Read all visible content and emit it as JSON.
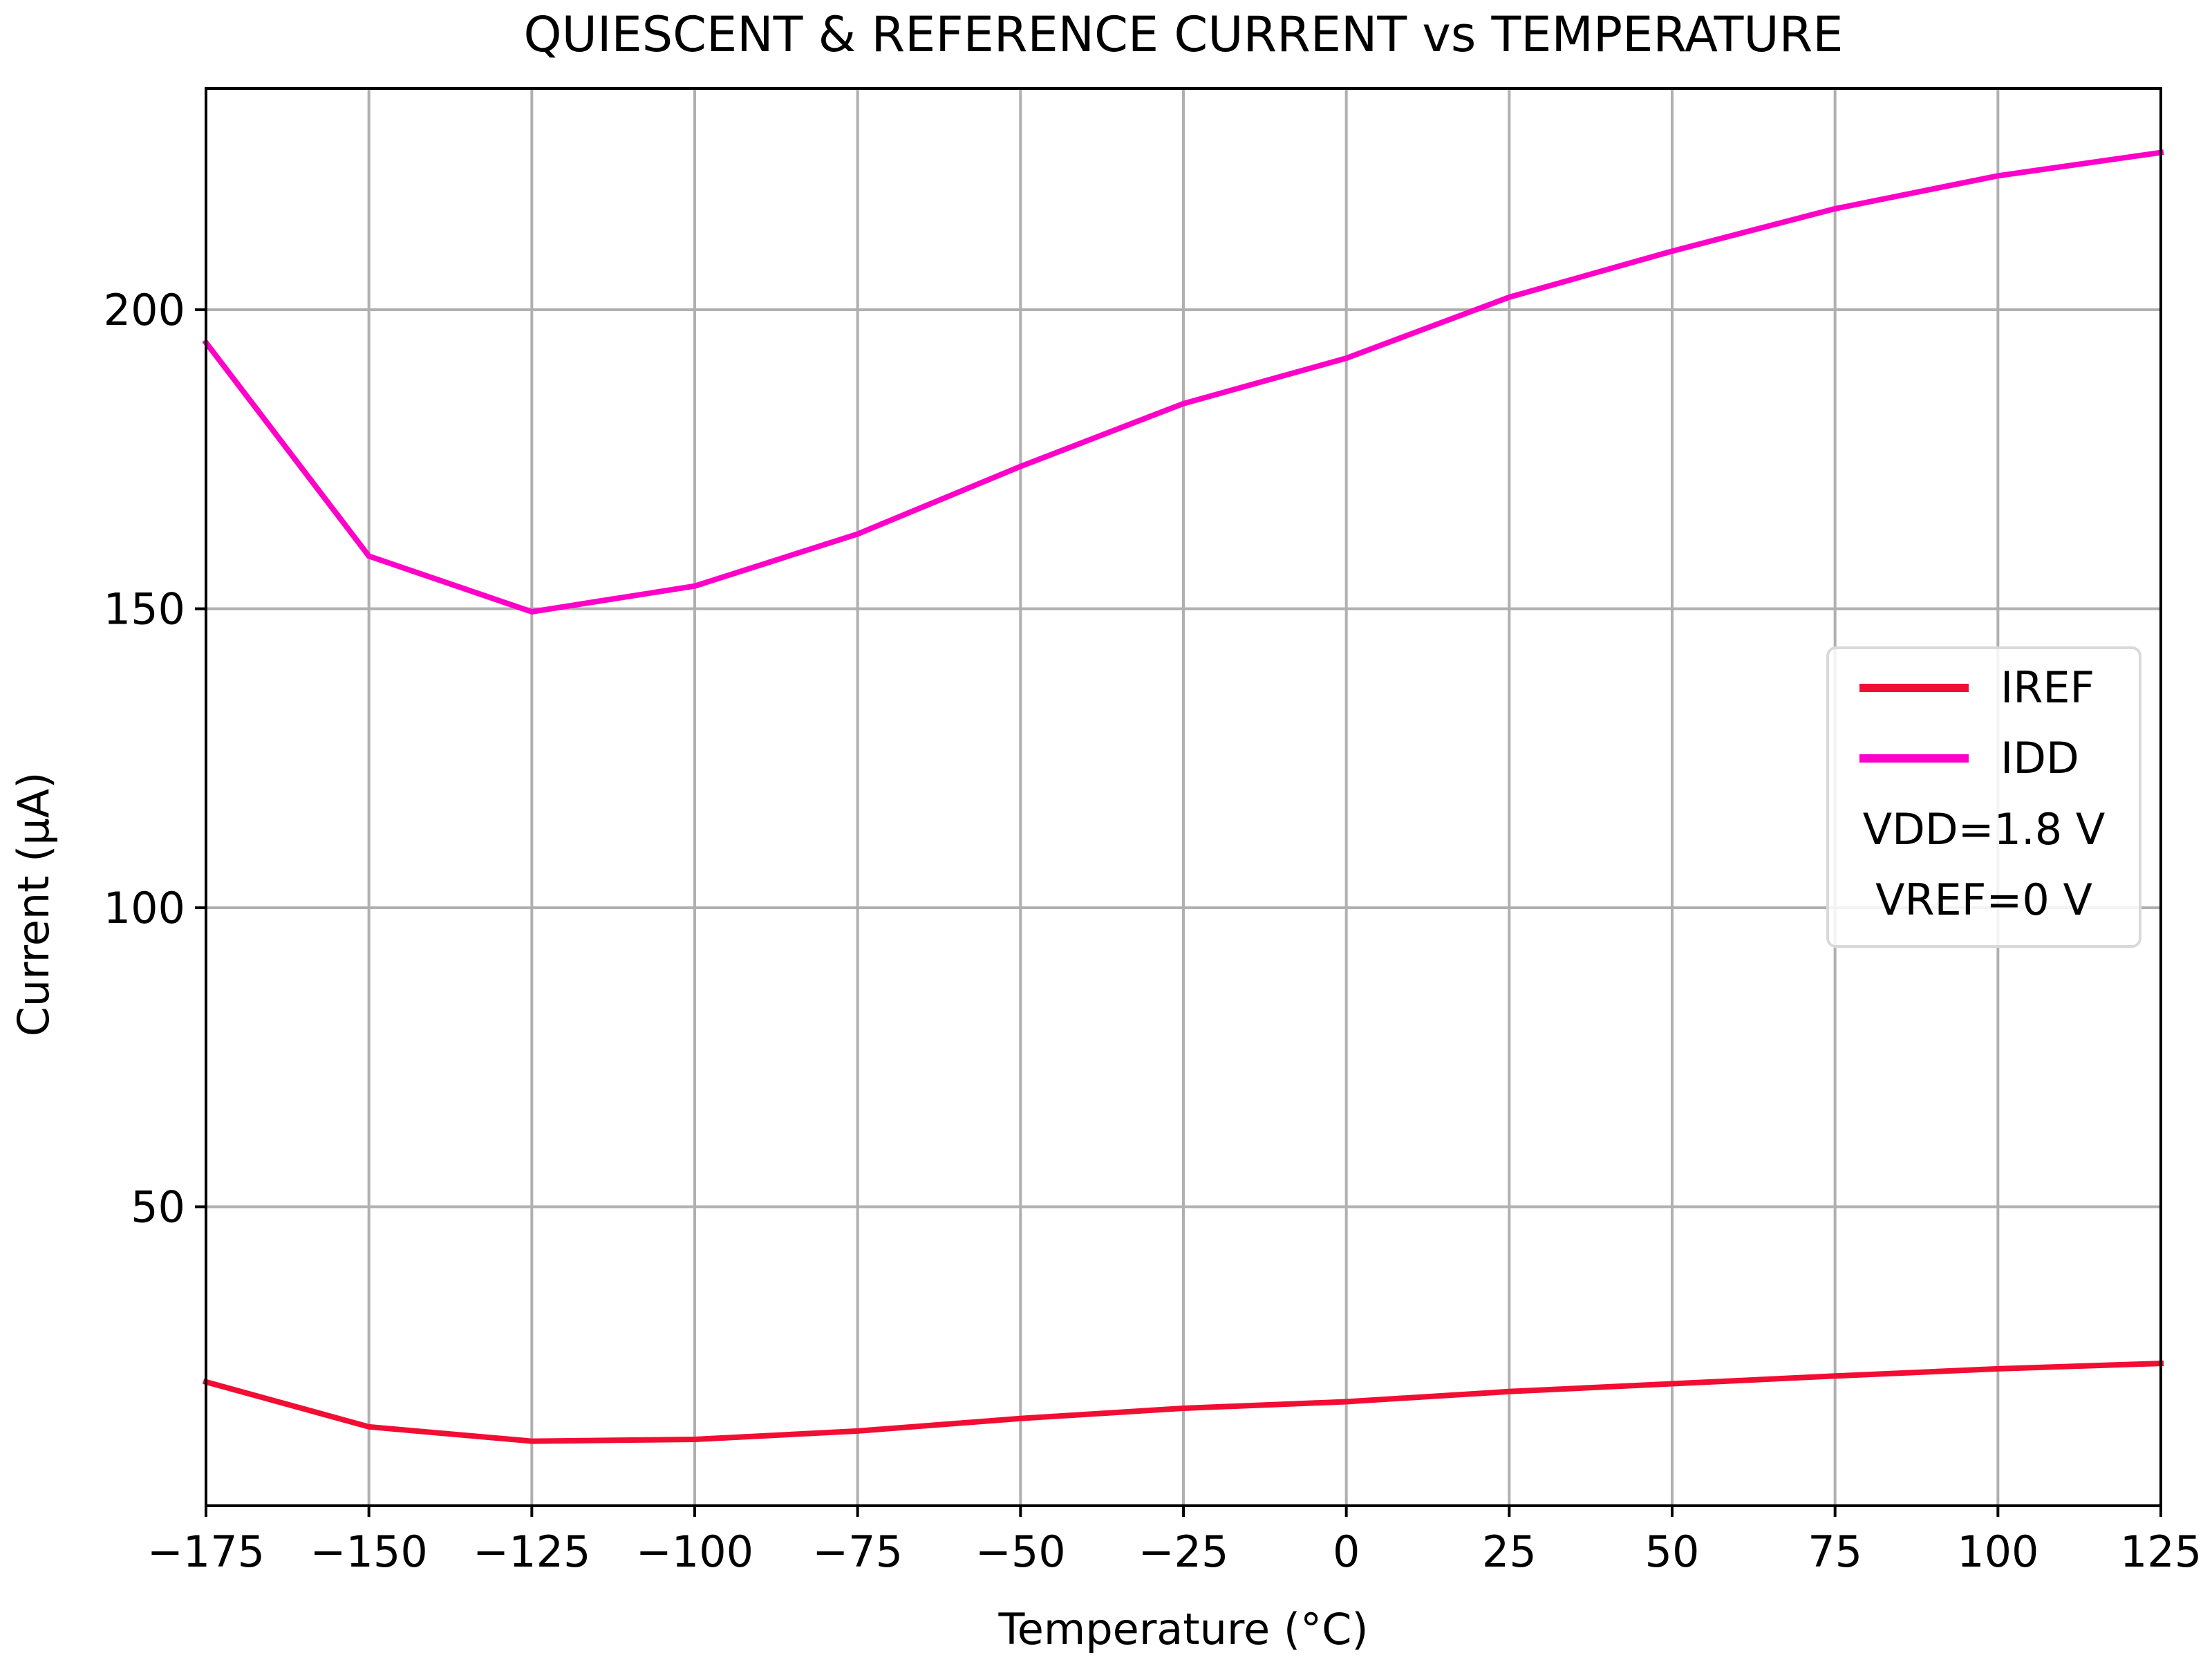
{
  "chart_data": {
    "type": "line",
    "title": "QUIESCENT & REFERENCE CURRENT vs TEMPERATURE",
    "xlabel": "Temperature (°C)",
    "ylabel": "Current (µA)",
    "xlim": [
      -175,
      125
    ],
    "ylim": [
      0,
      237
    ],
    "grid": true,
    "x_ticks": [
      -175,
      -150,
      -125,
      -100,
      -75,
      -50,
      -25,
      0,
      25,
      50,
      75,
      100,
      125
    ],
    "x_tick_labels": [
      "−175",
      "−150",
      "−125",
      "−100",
      "−75",
      "−50",
      "−25",
      "0",
      "25",
      "50",
      "75",
      "100",
      "125"
    ],
    "y_ticks": [
      50,
      100,
      150,
      200
    ],
    "y_tick_labels": [
      "50",
      "100",
      "150",
      "200"
    ],
    "legend_position": "right",
    "x": [
      -175,
      -150,
      -125,
      -100,
      -75,
      -50,
      -25,
      0,
      25,
      50,
      75,
      100,
      125
    ],
    "series": [
      {
        "name": "IREF",
        "color": "#f20d33",
        "values": [
          20.7,
          13.2,
          10.8,
          11.1,
          12.5,
          14.6,
          16.3,
          17.4,
          19.1,
          20.4,
          21.7,
          22.9,
          23.8
        ]
      },
      {
        "name": "IDD",
        "color": "#ff00c8",
        "values": [
          194.5,
          158.8,
          149.5,
          153.8,
          162.5,
          173.8,
          184.3,
          191.9,
          202.1,
          209.8,
          216.9,
          222.4,
          226.3
        ]
      }
    ],
    "legend_notes": [
      "VDD=1.8 V",
      "VREF=0 V"
    ]
  }
}
